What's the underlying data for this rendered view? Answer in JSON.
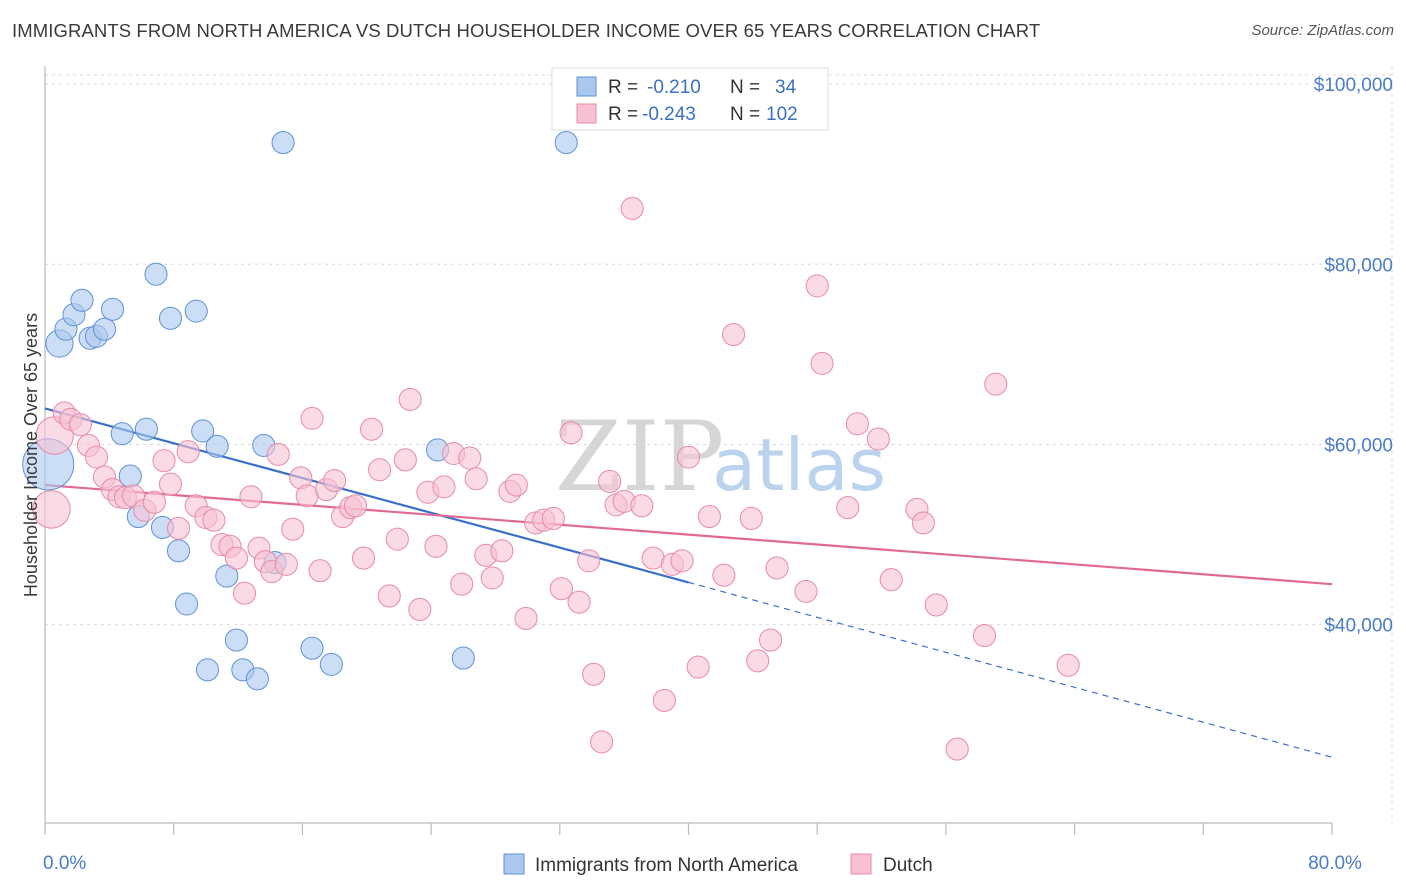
{
  "title": "IMMIGRANTS FROM NORTH AMERICA VS DUTCH HOUSEHOLDER INCOME OVER 65 YEARS CORRELATION CHART",
  "source": "Source: ZipAtlas.com",
  "watermark": {
    "zip": "ZIP",
    "atlas": "atlas"
  },
  "colors": {
    "blue_fill": "#aac8ee",
    "blue_stroke": "#5f92d6",
    "blue_line": "#3a70c8",
    "pink_fill": "#f7c1d3",
    "pink_stroke": "#e78aaa",
    "pink_line": "#e06a96",
    "axis_text": "#4a7cc7",
    "grid": "#d8d8d8"
  },
  "legend": {
    "rows": [
      {
        "r_label": "R =",
        "r_value": "-0.210",
        "n_label": "N =",
        "n_value": "34"
      },
      {
        "r_label": "R =",
        "r_value": "-0.243",
        "n_label": "N =",
        "n_value": "102"
      }
    ]
  },
  "chart_data": {
    "type": "scatter",
    "title": "IMMIGRANTS FROM NORTH AMERICA VS DUTCH HOUSEHOLDER INCOME OVER 65 YEARS CORRELATION CHART",
    "xlabel": "",
    "ylabel": "Householder Income Over 65 years",
    "xlim": [
      0,
      80
    ],
    "ylim": [
      18000,
      102000
    ],
    "x_ticks": [
      0,
      80
    ],
    "x_tick_labels": [
      "0.0%",
      "80.0%"
    ],
    "y_ticks": [
      40000,
      60000,
      80000,
      100000
    ],
    "y_tick_labels": [
      "$40,000",
      "$60,000",
      "$80,000",
      "$100,000"
    ],
    "grid": true,
    "legend_position": "bottom",
    "series": [
      {
        "name": "Immigrants from North America",
        "color": "#aac8ee",
        "r": -0.21,
        "n": 34,
        "trend": {
          "x": [
            0,
            40
          ],
          "y": [
            64000,
            44700
          ],
          "extended_to": [
            80,
            25300
          ]
        },
        "points": [
          [
            0.2,
            57800,
            3
          ],
          [
            0.9,
            71200,
            1.6
          ],
          [
            1.3,
            72800,
            1.3
          ],
          [
            1.8,
            74400,
            1.3
          ],
          [
            2.3,
            76000,
            1.3
          ],
          [
            2.8,
            71800,
            1.3
          ],
          [
            3.2,
            72000,
            1.3
          ],
          [
            3.7,
            72800,
            1.3
          ],
          [
            4.2,
            75000,
            1.3
          ],
          [
            4.8,
            61200,
            1.3
          ],
          [
            5.3,
            56500,
            1.3
          ],
          [
            5.8,
            52000,
            1.3
          ],
          [
            6.3,
            61700,
            1.3
          ],
          [
            6.9,
            78900,
            1.3
          ],
          [
            7.3,
            50800,
            1.3
          ],
          [
            7.8,
            74000,
            1.3
          ],
          [
            8.3,
            48200,
            1.3
          ],
          [
            8.8,
            42300,
            1.3
          ],
          [
            9.4,
            74800,
            1.3
          ],
          [
            9.8,
            61500,
            1.3
          ],
          [
            10.1,
            35000,
            1.3
          ],
          [
            10.7,
            59800,
            1.3
          ],
          [
            11.3,
            45400,
            1.3
          ],
          [
            11.9,
            38300,
            1.3
          ],
          [
            12.3,
            35000,
            1.3
          ],
          [
            13.2,
            34000,
            1.3
          ],
          [
            13.6,
            59900,
            1.3
          ],
          [
            14.3,
            46900,
            1.3
          ],
          [
            14.8,
            93500,
            1.3
          ],
          [
            16.6,
            37400,
            1.3
          ],
          [
            17.8,
            35600,
            1.3
          ],
          [
            24.4,
            59400,
            1.3
          ],
          [
            26.0,
            36300,
            1.3
          ],
          [
            32.4,
            93500,
            1.3
          ]
        ]
      },
      {
        "name": "Dutch",
        "color": "#f7c1d3",
        "r": -0.243,
        "n": 102,
        "trend": {
          "x": [
            0,
            80
          ],
          "y": [
            55500,
            44500
          ]
        },
        "points": [
          [
            0.4,
            52800,
            2.2
          ],
          [
            0.6,
            61000,
            2.2
          ],
          [
            1.2,
            63500,
            1.3
          ],
          [
            1.6,
            62800,
            1.3
          ],
          [
            2.2,
            62200,
            1.3
          ],
          [
            2.7,
            59900,
            1.3
          ],
          [
            3.2,
            58600,
            1.3
          ],
          [
            3.7,
            56400,
            1.3
          ],
          [
            4.2,
            55000,
            1.3
          ],
          [
            4.6,
            54200,
            1.3
          ],
          [
            5.0,
            54100,
            1.3
          ],
          [
            5.5,
            54300,
            1.3
          ],
          [
            6.2,
            52700,
            1.3
          ],
          [
            6.8,
            53600,
            1.3
          ],
          [
            7.4,
            58200,
            1.3
          ],
          [
            7.8,
            55600,
            1.3
          ],
          [
            8.3,
            50700,
            1.3
          ],
          [
            8.9,
            59200,
            1.3
          ],
          [
            9.4,
            53200,
            1.3
          ],
          [
            10.0,
            51900,
            1.3
          ],
          [
            10.5,
            51600,
            1.3
          ],
          [
            11.0,
            48900,
            1.3
          ],
          [
            11.5,
            48700,
            1.3
          ],
          [
            11.9,
            47400,
            1.3
          ],
          [
            12.4,
            43500,
            1.3
          ],
          [
            12.8,
            54200,
            1.3
          ],
          [
            13.3,
            48500,
            1.3
          ],
          [
            13.7,
            47000,
            1.3
          ],
          [
            14.1,
            45900,
            1.3
          ],
          [
            14.5,
            58900,
            1.3
          ],
          [
            15.0,
            46700,
            1.3
          ],
          [
            15.4,
            50600,
            1.3
          ],
          [
            15.9,
            56300,
            1.3
          ],
          [
            16.3,
            54300,
            1.3
          ],
          [
            16.6,
            62900,
            1.3
          ],
          [
            17.1,
            46000,
            1.3
          ],
          [
            17.5,
            55000,
            1.3
          ],
          [
            18.0,
            56000,
            1.3
          ],
          [
            18.5,
            52000,
            1.3
          ],
          [
            19.0,
            53000,
            1.3
          ],
          [
            19.3,
            53200,
            1.3
          ],
          [
            19.8,
            47400,
            1.3
          ],
          [
            20.3,
            61700,
            1.3
          ],
          [
            20.8,
            57200,
            1.3
          ],
          [
            21.4,
            43200,
            1.3
          ],
          [
            21.9,
            49500,
            1.3
          ],
          [
            22.4,
            58300,
            1.3
          ],
          [
            22.7,
            65000,
            1.3
          ],
          [
            23.3,
            41700,
            1.3
          ],
          [
            23.8,
            54700,
            1.3
          ],
          [
            24.3,
            48700,
            1.3
          ],
          [
            24.8,
            55300,
            1.3
          ],
          [
            25.4,
            59000,
            1.3
          ],
          [
            25.9,
            44500,
            1.3
          ],
          [
            26.4,
            58500,
            1.3
          ],
          [
            26.8,
            56200,
            1.3
          ],
          [
            27.4,
            47700,
            1.3
          ],
          [
            27.8,
            45200,
            1.3
          ],
          [
            28.4,
            48200,
            1.3
          ],
          [
            28.9,
            54800,
            1.3
          ],
          [
            29.3,
            55500,
            1.3
          ],
          [
            29.9,
            40700,
            1.3
          ],
          [
            30.5,
            51300,
            1.3
          ],
          [
            31.0,
            51600,
            1.3
          ],
          [
            31.6,
            51800,
            1.3
          ],
          [
            32.1,
            44000,
            1.3
          ],
          [
            32.7,
            61300,
            1.3
          ],
          [
            33.2,
            42500,
            1.3
          ],
          [
            33.8,
            47100,
            1.3
          ],
          [
            34.1,
            34500,
            1.3
          ],
          [
            34.6,
            27000,
            1.3
          ],
          [
            35.1,
            55900,
            1.3
          ],
          [
            35.5,
            53300,
            1.3
          ],
          [
            36.0,
            53700,
            1.3
          ],
          [
            36.5,
            86200,
            1.3
          ],
          [
            37.1,
            53200,
            1.3
          ],
          [
            37.8,
            47400,
            1.3
          ],
          [
            38.5,
            31600,
            1.3
          ],
          [
            39.0,
            46700,
            1.3
          ],
          [
            39.6,
            47100,
            1.3
          ],
          [
            40.0,
            58600,
            1.3
          ],
          [
            40.6,
            35300,
            1.3
          ],
          [
            41.3,
            52000,
            1.3
          ],
          [
            42.2,
            45500,
            1.3
          ],
          [
            42.8,
            72200,
            1.3
          ],
          [
            43.9,
            51800,
            1.3
          ],
          [
            44.3,
            36000,
            1.3
          ],
          [
            45.1,
            38300,
            1.3
          ],
          [
            45.5,
            46300,
            1.3
          ],
          [
            47.3,
            43700,
            1.3
          ],
          [
            48.0,
            77600,
            1.3
          ],
          [
            48.3,
            69000,
            1.3
          ],
          [
            49.9,
            53000,
            1.3
          ],
          [
            50.5,
            62300,
            1.3
          ],
          [
            51.8,
            60600,
            1.3
          ],
          [
            52.6,
            45000,
            1.3
          ],
          [
            54.2,
            52800,
            1.3
          ],
          [
            54.6,
            51300,
            1.3
          ],
          [
            55.4,
            42200,
            1.3
          ],
          [
            56.7,
            26200,
            1.3
          ],
          [
            58.4,
            38800,
            1.3
          ],
          [
            59.1,
            66700,
            1.3
          ],
          [
            63.6,
            35500,
            1.3
          ]
        ]
      }
    ]
  },
  "bottom_legend": [
    {
      "label": "Immigrants from North America"
    },
    {
      "label": "Dutch"
    }
  ]
}
